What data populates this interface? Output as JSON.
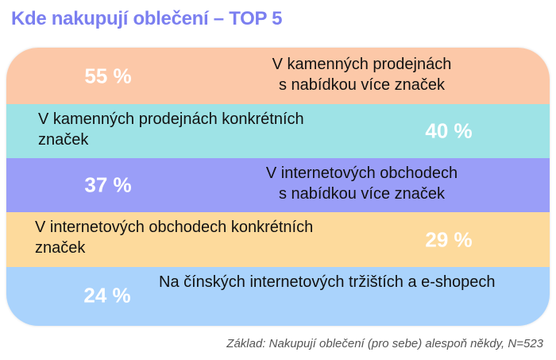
{
  "title": "Kde nakupují oblečení – TOP 5",
  "footnote": "Základ: Nakupují oblečení (pro sebe) alespoň někdy, N=523",
  "chart_data": {
    "type": "table",
    "title": "Kde nakupují oblečení – TOP 5",
    "rows": [
      {
        "label_line1": "V kamenných prodejnách",
        "label_line2": "s nabídkou více značek",
        "pct_label": "55 %",
        "value": 55,
        "color": "#fcc8a8"
      },
      {
        "label_line1": "V kamenných prodejnách konkrétních",
        "label_line2": "značek",
        "pct_label": "40 %",
        "value": 40,
        "color": "#9ee3e6"
      },
      {
        "label_line1": "V internetových obchodech",
        "label_line2": "s nabídkou více značek",
        "pct_label": "37 %",
        "value": 37,
        "color": "#9a9ef8"
      },
      {
        "label_line1": "V internetových obchodech konkrétních",
        "label_line2": "značek",
        "pct_label": "29 %",
        "value": 29,
        "color": "#fdda9c"
      },
      {
        "label_line1": "Na čínských internetových tržištích a e-shopech",
        "label_line2": "",
        "pct_label": "24 %",
        "value": 24,
        "color": "#aad3fc"
      }
    ]
  }
}
